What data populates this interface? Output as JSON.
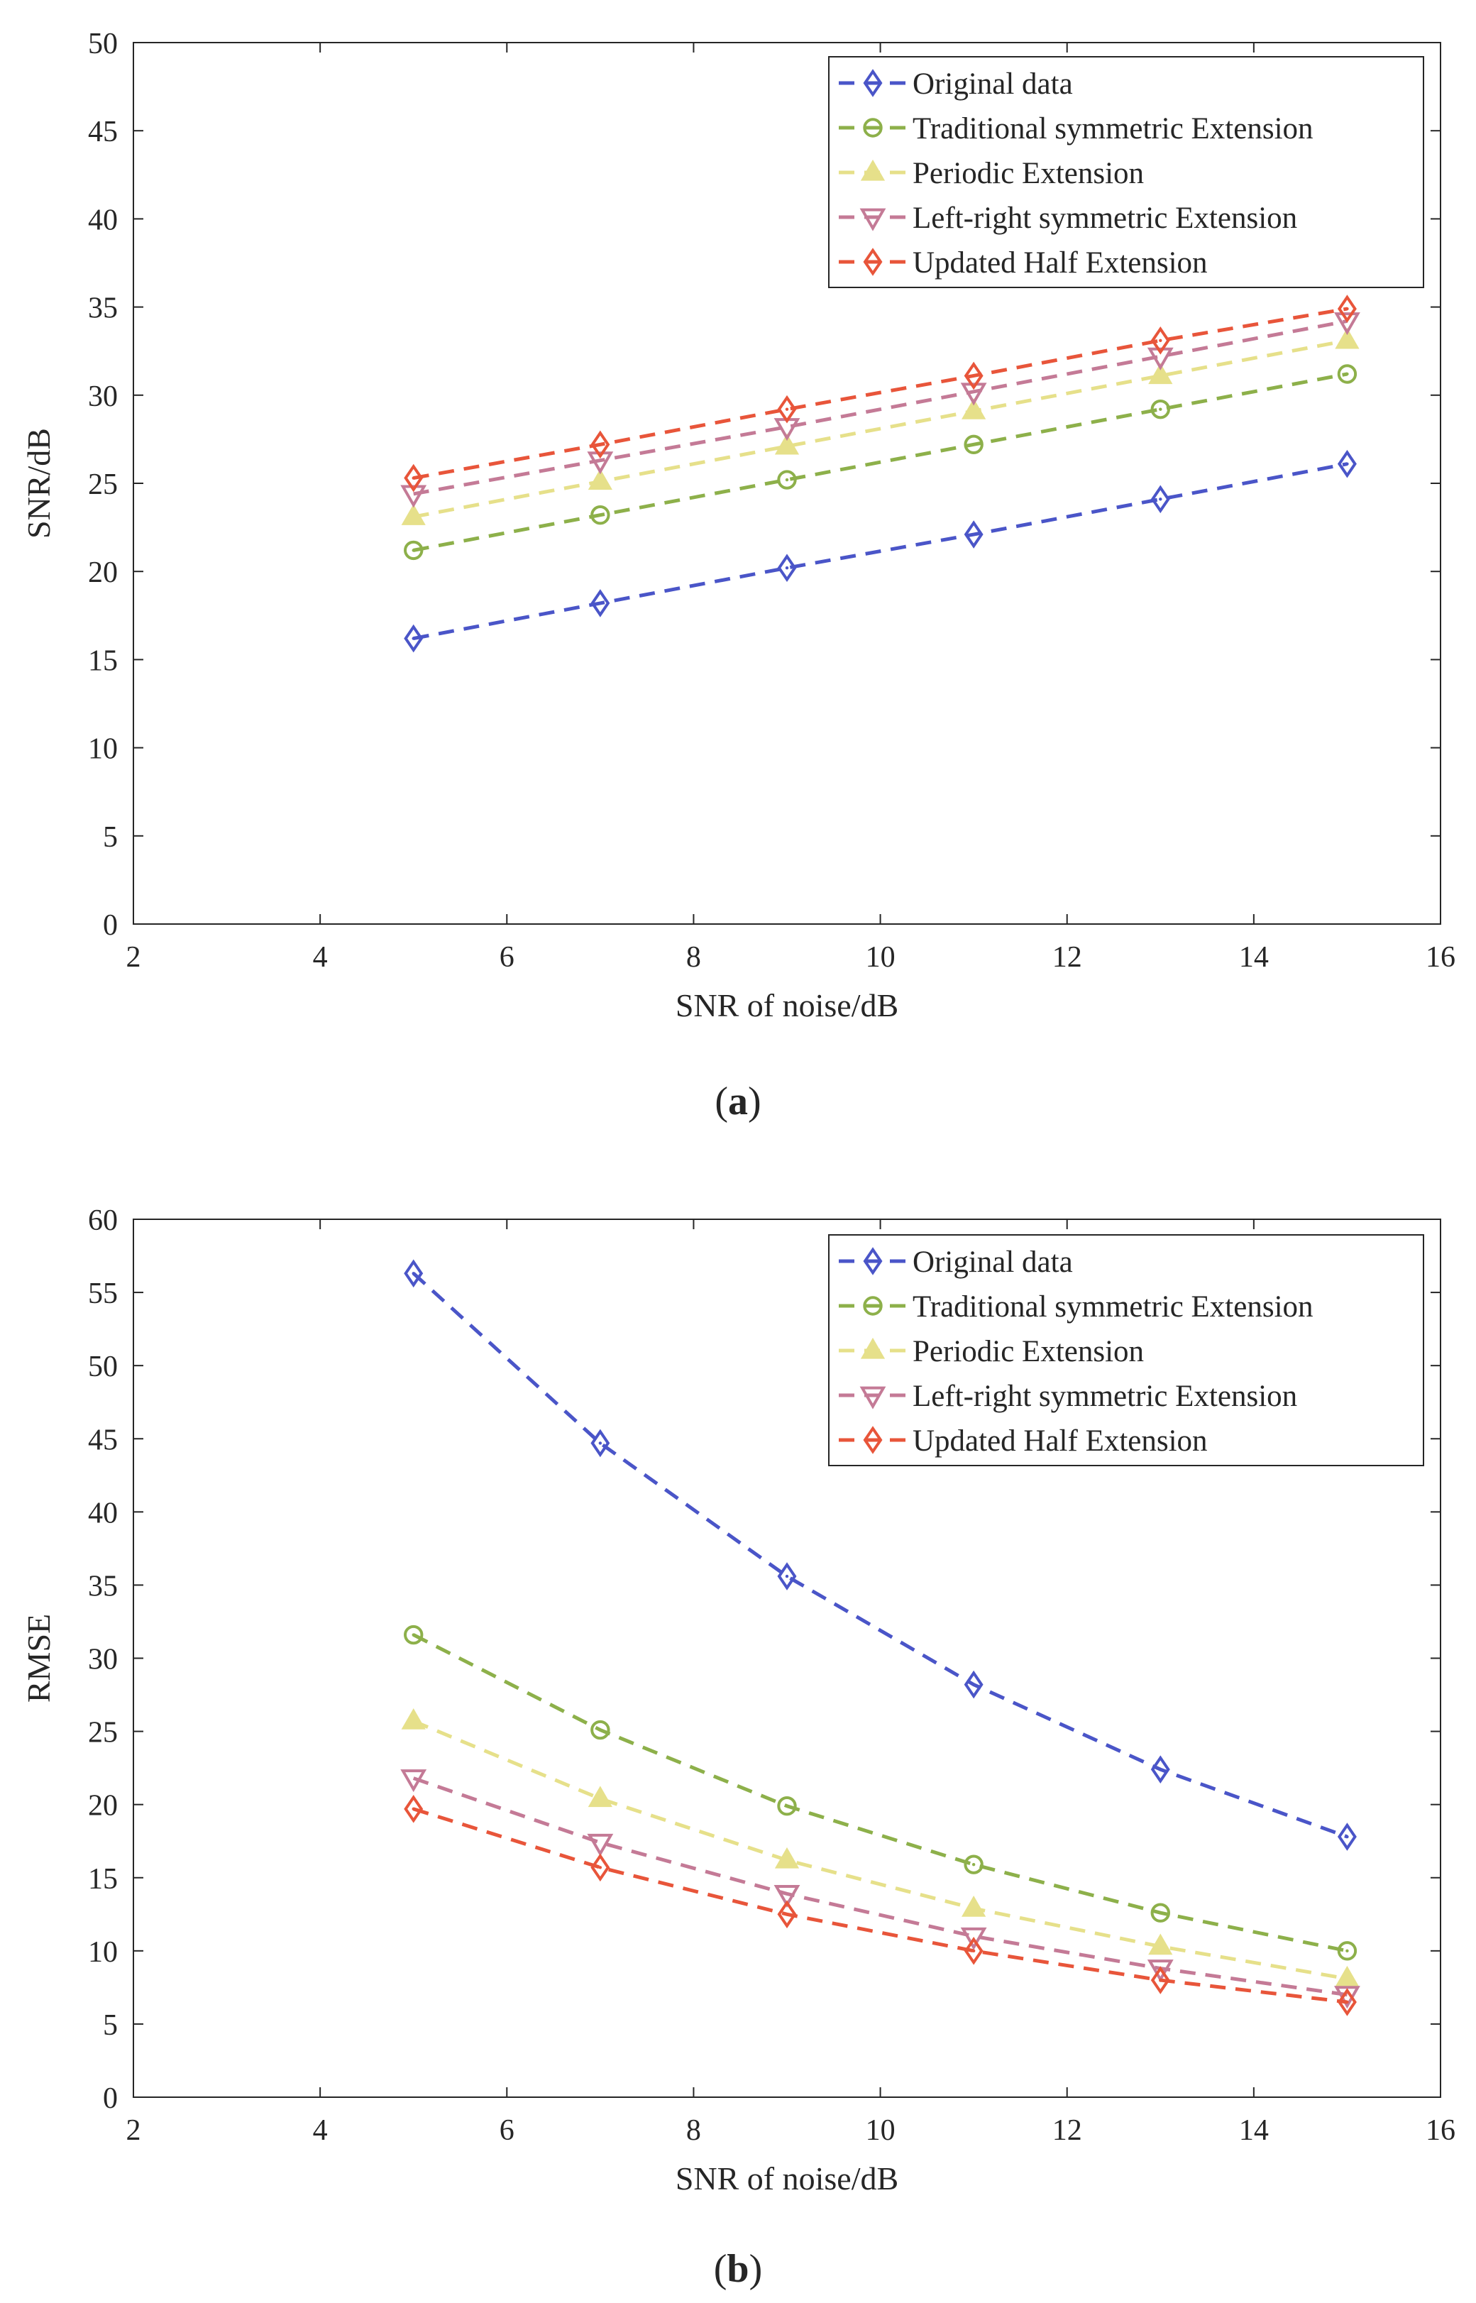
{
  "chart_data": [
    {
      "type": "line",
      "caption_letter": "a",
      "xlabel": "SNR of noise/dB",
      "ylabel": "SNR/dB",
      "xlim": [
        2,
        16
      ],
      "ylim": [
        0,
        50
      ],
      "xticks": [
        2,
        4,
        6,
        8,
        10,
        12,
        14,
        16
      ],
      "yticks": [
        0,
        5,
        10,
        15,
        20,
        25,
        30,
        35,
        40,
        45,
        50
      ],
      "x": [
        5,
        7,
        9,
        11,
        13,
        15
      ],
      "legend_position": "top-right",
      "series": [
        {
          "name": "Original data",
          "color": "#4a55c8",
          "marker": "diamond",
          "values": [
            16.2,
            18.2,
            20.2,
            22.1,
            24.1,
            26.1
          ]
        },
        {
          "name": "Traditional symmetric Extension",
          "color": "#8db04a",
          "marker": "circle",
          "values": [
            21.2,
            23.2,
            25.2,
            27.2,
            29.2,
            31.2
          ]
        },
        {
          "name": "Periodic Extension",
          "color": "#e6e08a",
          "marker": "triangle-up",
          "values": [
            23.1,
            25.1,
            27.1,
            29.1,
            31.1,
            33.1
          ]
        },
        {
          "name": "Left-right symmetric Extension",
          "color": "#c47a96",
          "marker": "triangle-down",
          "values": [
            24.4,
            26.3,
            28.2,
            30.2,
            32.2,
            34.2
          ]
        },
        {
          "name": "Updated Half Extension",
          "color": "#e8553a",
          "marker": "diamond",
          "values": [
            25.3,
            27.2,
            29.2,
            31.1,
            33.1,
            34.9
          ]
        }
      ]
    },
    {
      "type": "line",
      "caption_letter": "b",
      "xlabel": "SNR of noise/dB",
      "ylabel": "RMSE",
      "xlim": [
        2,
        16
      ],
      "ylim": [
        0,
        60
      ],
      "xticks": [
        2,
        4,
        6,
        8,
        10,
        12,
        14,
        16
      ],
      "yticks": [
        0,
        5,
        10,
        15,
        20,
        25,
        30,
        35,
        40,
        45,
        50,
        55,
        60
      ],
      "x": [
        5,
        7,
        9,
        11,
        13,
        15
      ],
      "legend_position": "top-right",
      "series": [
        {
          "name": "Original data",
          "color": "#4a55c8",
          "marker": "diamond",
          "values": [
            56.3,
            44.7,
            35.6,
            28.2,
            22.4,
            17.8
          ]
        },
        {
          "name": "Traditional symmetric Extension",
          "color": "#8db04a",
          "marker": "circle",
          "values": [
            31.6,
            25.1,
            19.9,
            15.9,
            12.6,
            10.0
          ]
        },
        {
          "name": "Periodic Extension",
          "color": "#e6e08a",
          "marker": "triangle-up",
          "values": [
            25.7,
            20.4,
            16.2,
            12.9,
            10.3,
            8.1
          ]
        },
        {
          "name": "Left-right symmetric Extension",
          "color": "#c47a96",
          "marker": "triangle-down",
          "values": [
            21.8,
            17.4,
            13.9,
            11.0,
            8.8,
            7.0
          ]
        },
        {
          "name": "Updated Half Extension",
          "color": "#e8553a",
          "marker": "diamond",
          "values": [
            19.7,
            15.7,
            12.5,
            10.0,
            8.0,
            6.5
          ]
        }
      ]
    }
  ]
}
